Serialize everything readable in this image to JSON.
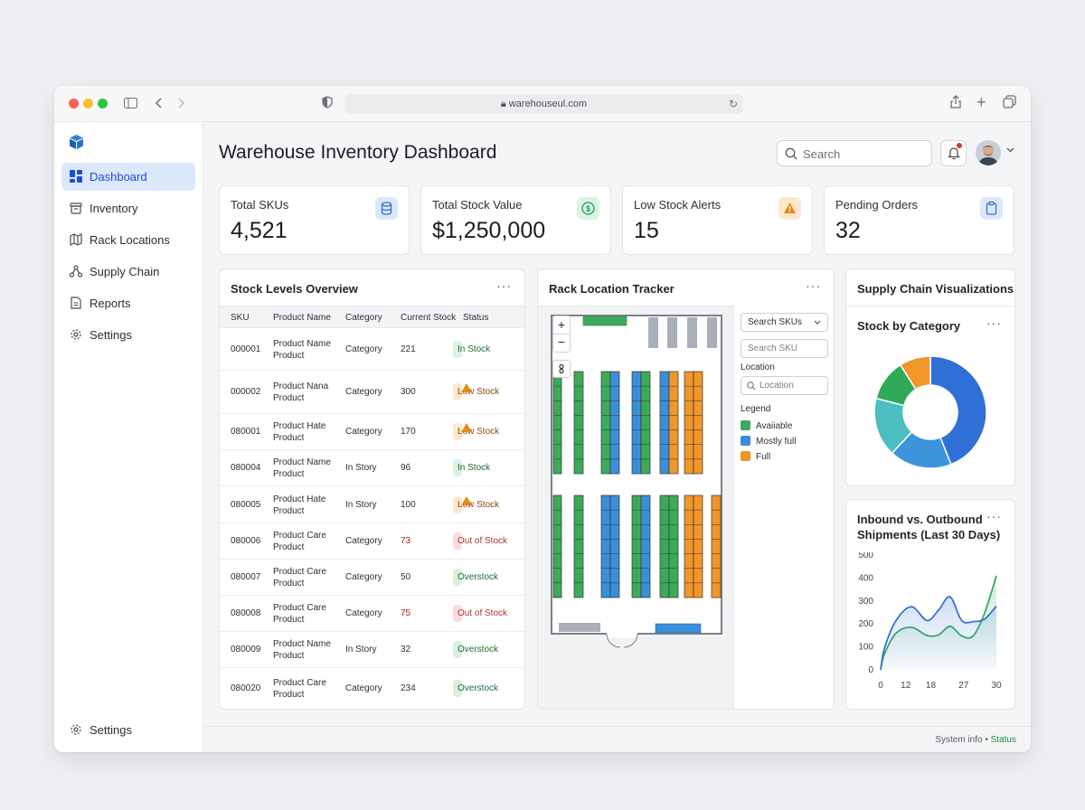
{
  "browser": {
    "url": "warehouseul.com"
  },
  "sidebar": {
    "items": [
      {
        "label": "Dashboard",
        "icon": "dashboard-icon",
        "active": true
      },
      {
        "label": "Inventory",
        "icon": "inventory-icon"
      },
      {
        "label": "Rack Locations",
        "icon": "map-icon"
      },
      {
        "label": "Supply Chain",
        "icon": "network-icon"
      },
      {
        "label": "Reports",
        "icon": "document-icon"
      },
      {
        "label": "Settings",
        "icon": "gear-icon"
      }
    ],
    "bottom_settings": "Settings"
  },
  "header": {
    "title": "Warehouse Inventory Dashboard",
    "search_placeholder": "Search"
  },
  "kpis": [
    {
      "label": "Total SKUs",
      "value": "4,521",
      "icon": "database-icon",
      "color": "#2f6fd6"
    },
    {
      "label": "Total Stock Value",
      "value": "$1,250,000",
      "icon": "dollar-icon",
      "color": "#1f9d57"
    },
    {
      "label": "Low Stock Alerts",
      "value": "15",
      "icon": "warning-icon",
      "color": "#e68a17"
    },
    {
      "label": "Pending Orders",
      "value": "32",
      "icon": "clipboard-icon",
      "color": "#2f6fd6"
    }
  ],
  "stock": {
    "title": "Stock Levels Overview",
    "columns": [
      "SKU",
      "Product Name",
      "Category",
      "Current Stock",
      "Status"
    ],
    "rows": [
      {
        "sku": "000001",
        "name1": "Product Name",
        "name2": "Product",
        "cat": "Category",
        "stock": "221",
        "status": "In Stock",
        "kind": "in"
      },
      {
        "sku": "000002",
        "name1": "Product Nana",
        "name2": "Product",
        "cat": "Category",
        "stock": "300",
        "status": "Low Stock",
        "kind": "low"
      },
      {
        "sku": "080001",
        "name1": "Product Hate",
        "name2": "Product",
        "cat": "Category",
        "stock": "170",
        "status": "Low Stock",
        "kind": "low"
      },
      {
        "sku": "080004",
        "name1": "Product Name",
        "name2": "Product",
        "cat": "In Story",
        "stock": "96",
        "status": "In Stock",
        "kind": "in"
      },
      {
        "sku": "080005",
        "name1": "Product Hate",
        "name2": "Product",
        "cat": "In Story",
        "stock": "100",
        "status": "Low Stock",
        "kind": "low"
      },
      {
        "sku": "080006",
        "name1": "Product Care",
        "name2": "Product",
        "cat": "Category",
        "stock": "73",
        "status": "Out of Stock",
        "kind": "out"
      },
      {
        "sku": "080007",
        "name1": "Product Care",
        "name2": "Product",
        "cat": "Category",
        "stock": "50",
        "status": "Overstock",
        "kind": "over"
      },
      {
        "sku": "080008",
        "name1": "Product Care",
        "name2": "Product",
        "cat": "Category",
        "stock": "75",
        "status": "Out of Stock",
        "kind": "out"
      },
      {
        "sku": "080009",
        "name1": "Product Name",
        "name2": "Product",
        "cat": "In Story",
        "stock": "32",
        "status": "Overstock",
        "kind": "over"
      },
      {
        "sku": "080020",
        "name1": "Product Care",
        "name2": "Product",
        "cat": "Category",
        "stock": "234",
        "status": "Overstock",
        "kind": "over"
      }
    ]
  },
  "rack": {
    "title": "Rack Location Tracker",
    "search_skus": "Search SKUs",
    "search_sku_placeholder": "Search SKU",
    "location_label": "Location",
    "location_placeholder": "Location",
    "legend_title": "Legend",
    "legend": [
      {
        "label": "Avaiiable",
        "color": "#3daa5a"
      },
      {
        "label": "Mostly full",
        "color": "#3b8fd8"
      },
      {
        "label": "Full",
        "color": "#f0962a"
      }
    ]
  },
  "supply": {
    "title": "Supply Chain Visualizations"
  },
  "chart_data": [
    {
      "type": "pie",
      "title": "Stock by Category",
      "values": [
        44,
        18,
        17,
        12,
        9
      ],
      "colors": [
        "#2f6fd6",
        "#3d94dc",
        "#4bbfc0",
        "#2faa58",
        "#f0962a"
      ]
    },
    {
      "type": "line",
      "title": "Inbound vs. Outbound",
      "subtitle": "Shipments (Last 30 Days)",
      "x_ticks": [
        0,
        12,
        18,
        27,
        30
      ],
      "y_ticks": [
        0,
        100,
        200,
        300,
        400,
        500
      ],
      "ylim": [
        0,
        500
      ],
      "series": [
        {
          "color": "#2f6fd6",
          "x": [
            0,
            1,
            4,
            8,
            12,
            15,
            18,
            21,
            24,
            27,
            30
          ],
          "values": [
            0,
            95,
            215,
            275,
            215,
            260,
            318,
            215,
            210,
            222,
            278
          ]
        },
        {
          "color": "#2faa58",
          "x": [
            0,
            1,
            4,
            8,
            12,
            15,
            18,
            21,
            24,
            27,
            30
          ],
          "values": [
            0,
            70,
            160,
            185,
            150,
            152,
            190,
            148,
            148,
            250,
            410
          ]
        }
      ]
    }
  ],
  "footer": {
    "text": "System info •",
    "status": "Status"
  }
}
